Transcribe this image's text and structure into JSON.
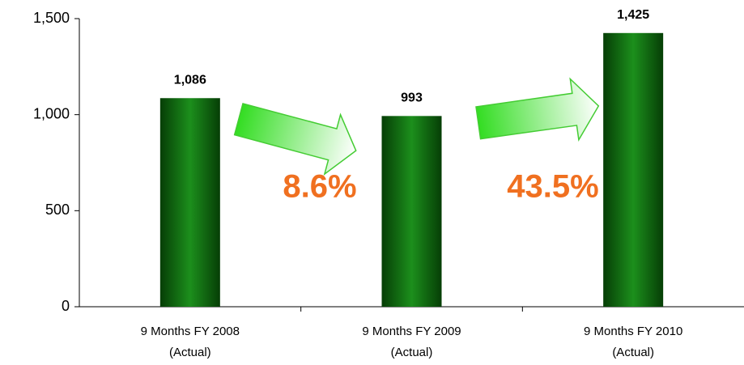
{
  "chart_data": {
    "type": "bar",
    "categories": [
      [
        "9 Months FY 2008",
        "(Actual)"
      ],
      [
        "9 Months FY 2009",
        "(Actual)"
      ],
      [
        "9 Months FY 2010",
        "(Actual)"
      ]
    ],
    "values": [
      1086,
      993,
      1425
    ],
    "value_labels": [
      "1,086",
      "993",
      "1,425"
    ],
    "color": "#0b6e0b",
    "ylim": [
      0,
      1500
    ],
    "yticks": [
      0,
      {
        "value": 500,
        "label": "500"
      },
      {
        "value": 1000,
        "label": "1,000"
      },
      {
        "value": 1500,
        "label": "1,500"
      }
    ],
    "annotations": [
      "8.6%",
      "43.5%"
    ]
  }
}
